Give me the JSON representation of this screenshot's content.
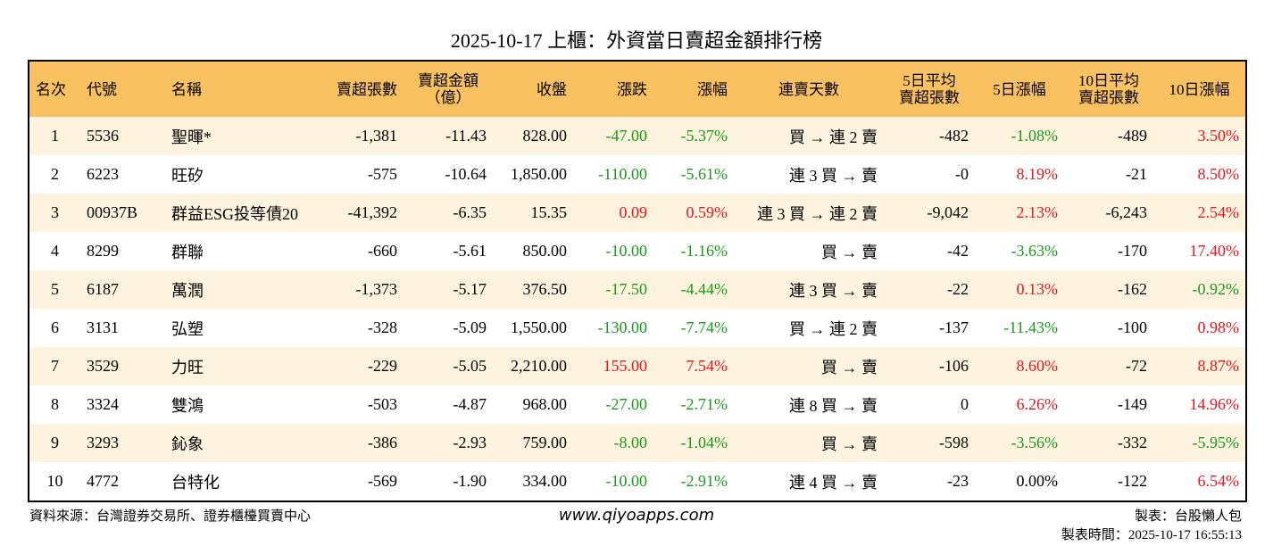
{
  "header": {
    "title": "2025-10-17 上櫃：外資當日賣超金額排行榜"
  },
  "table": {
    "columns": [
      "名次",
      "代號",
      "名稱",
      "賣超張數",
      "賣超金額\n（億）",
      "收盤",
      "漲跌",
      "漲幅",
      "連賣天數",
      "5日平均\n賣超張數",
      "5日漲幅",
      "10日平均\n賣超張數",
      "10日漲幅"
    ],
    "rows": [
      [
        "1",
        "5536",
        "聖暉*",
        "-1,381",
        "-11.43",
        "828.00",
        "-47.00",
        "-5.37%",
        "買 → 連 2 賣",
        "-482",
        "-1.08%",
        "-489",
        "3.50%"
      ],
      [
        "2",
        "6223",
        "旺矽",
        "-575",
        "-10.64",
        "1,850.00",
        "-110.00",
        "-5.61%",
        "連 3 買 → 賣",
        "-0",
        "8.19%",
        "-21",
        "8.50%"
      ],
      [
        "3",
        "00937B",
        "群益ESG投等債20",
        "-41,392",
        "-6.35",
        "15.35",
        "0.09",
        "0.59%",
        "連 3 買 → 連 2 賣",
        "-9,042",
        "2.13%",
        "-6,243",
        "2.54%"
      ],
      [
        "4",
        "8299",
        "群聯",
        "-660",
        "-5.61",
        "850.00",
        "-10.00",
        "-1.16%",
        "買 → 賣",
        "-42",
        "-3.63%",
        "-170",
        "17.40%"
      ],
      [
        "5",
        "6187",
        "萬潤",
        "-1,373",
        "-5.17",
        "376.50",
        "-17.50",
        "-4.44%",
        "連 3 買 → 賣",
        "-22",
        "0.13%",
        "-162",
        "-0.92%"
      ],
      [
        "6",
        "3131",
        "弘塑",
        "-328",
        "-5.09",
        "1,550.00",
        "-130.00",
        "-7.74%",
        "買 → 連 2 賣",
        "-137",
        "-11.43%",
        "-100",
        "0.98%"
      ],
      [
        "7",
        "3529",
        "力旺",
        "-229",
        "-5.05",
        "2,210.00",
        "155.00",
        "7.54%",
        "買 → 賣",
        "-106",
        "8.60%",
        "-72",
        "8.87%"
      ],
      [
        "8",
        "3324",
        "雙鴻",
        "-503",
        "-4.87",
        "968.00",
        "-27.00",
        "-2.71%",
        "連 8 買 → 賣",
        "0",
        "6.26%",
        "-149",
        "14.96%"
      ],
      [
        "9",
        "3293",
        "鈊象",
        "-386",
        "-2.93",
        "759.00",
        "-8.00",
        "-1.04%",
        "買 → 賣",
        "-598",
        "-3.56%",
        "-332",
        "-5.95%"
      ],
      [
        "10",
        "4772",
        "台特化",
        "-569",
        "-1.90",
        "334.00",
        "-10.00",
        "-2.91%",
        "連 4 買 → 賣",
        "-23",
        "0.00%",
        "-122",
        "6.54%"
      ]
    ],
    "colors": {
      "up": "#e8141e",
      "down": "#1a9a1a",
      "flat": "#000000",
      "header": "#f9c15f",
      "stripe": "#fdf3de"
    }
  },
  "footer": {
    "source": "資料來源：台灣證券交易所、證券櫃檯買賣中心",
    "website": "www.qiyoapps.com",
    "maker": "製表：台股懶人包",
    "time": "製表時間：2025-10-17 16:55:13"
  }
}
